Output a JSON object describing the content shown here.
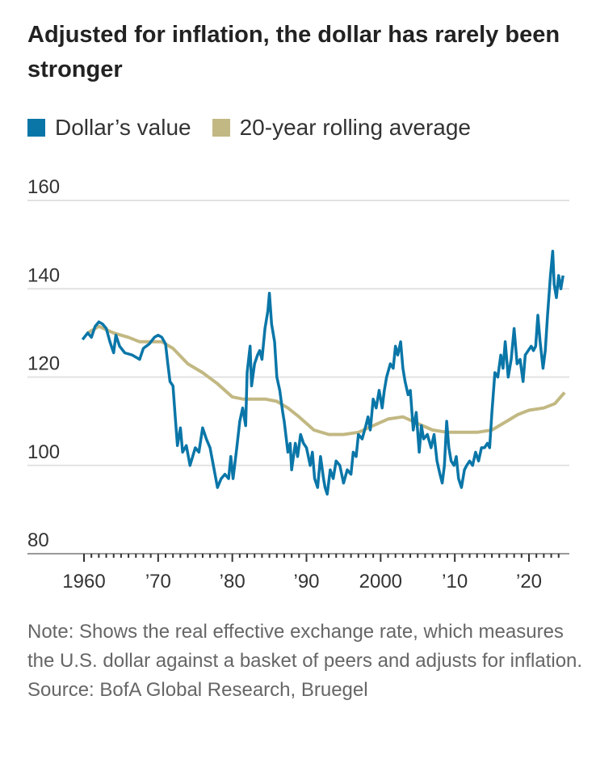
{
  "chart_data": {
    "type": "line",
    "title": "Adjusted for inflation, the dollar has rarely been stronger",
    "xlabel": "",
    "ylabel": "",
    "ylim": [
      80,
      160
    ],
    "xlim": [
      1958,
      2025.5
    ],
    "yticks": [
      160,
      140,
      120,
      100,
      80
    ],
    "xticks": [
      {
        "v": 1960,
        "l": "1960"
      },
      {
        "v": 1970,
        "l": "’70"
      },
      {
        "v": 1980,
        "l": "’80"
      },
      {
        "v": 1990,
        "l": "’90"
      },
      {
        "v": 2000,
        "l": "2000"
      },
      {
        "v": 2010,
        "l": "’10"
      },
      {
        "v": 2020,
        "l": "’20"
      }
    ],
    "grid": true,
    "legend_placement": "top",
    "series": [
      {
        "name": "Dollar’s value",
        "color": "#0a76a8",
        "x": [
          1959.8,
          1960.5,
          1961,
          1961.5,
          1962,
          1962.5,
          1963,
          1963.5,
          1964,
          1964.3,
          1964.8,
          1965.5,
          1966.5,
          1967,
          1967.5,
          1968,
          1968.8,
          1969.5,
          1970,
          1970.5,
          1971,
          1971.3,
          1971.6,
          1972,
          1972.3,
          1972.6,
          1973,
          1973.3,
          1973.8,
          1974.3,
          1975,
          1975.5,
          1976,
          1976.5,
          1977,
          1977.5,
          1978,
          1978.5,
          1979,
          1979.5,
          1979.8,
          1980.1,
          1980.6,
          1981,
          1981.4,
          1981.8,
          1982,
          1982.4,
          1982.6,
          1983,
          1983.4,
          1983.7,
          1984,
          1984.4,
          1984.8,
          1985,
          1985.3,
          1985.7,
          1986,
          1986.4,
          1986.8,
          1987,
          1987.5,
          1987.8,
          1988,
          1988.5,
          1988.8,
          1989.2,
          1989.6,
          1990,
          1990.5,
          1990.8,
          1991.1,
          1991.5,
          1991.9,
          1992.3,
          1992.5,
          1992.8,
          1993.2,
          1993.6,
          1994,
          1994.5,
          1995,
          1995.5,
          1996,
          1996.3,
          1996.7,
          1997,
          1997.5,
          1998,
          1998.3,
          1998.6,
          1999,
          1999.4,
          1999.8,
          2000.2,
          2000.5,
          2000.8,
          2001.3,
          2001.7,
          2002,
          2002.3,
          2002.7,
          2003,
          2003.3,
          2003.7,
          2004,
          2004.4,
          2004.8,
          2005.2,
          2005.5,
          2005.8,
          2006.3,
          2006.8,
          2007.2,
          2007.6,
          2008,
          2008.3,
          2008.6,
          2008.9,
          2009.2,
          2009.5,
          2009.9,
          2010.2,
          2010.5,
          2010.9,
          2011.3,
          2011.6,
          2012,
          2012.4,
          2012.8,
          2013.2,
          2013.6,
          2014,
          2014.4,
          2014.7,
          2015,
          2015.4,
          2015.8,
          2016.2,
          2016.5,
          2016.8,
          2017.2,
          2017.6,
          2018,
          2018.4,
          2018.8,
          2019.2,
          2019.5,
          2019.9,
          2020.3,
          2020.6,
          2020.9,
          2021.2,
          2021.5,
          2021.9,
          2022.2,
          2022.5,
          2022.9,
          2023.2,
          2023.4,
          2023.7,
          2024,
          2024.3,
          2024.6
        ],
        "values": [
          128.5,
          130,
          129,
          131.5,
          132.5,
          132,
          131,
          128,
          125.5,
          129.5,
          127,
          125.5,
          125,
          124.5,
          124,
          126.5,
          127.5,
          129,
          129.5,
          129,
          127.5,
          123,
          119,
          118,
          111,
          104.5,
          108.5,
          103,
          104.5,
          100,
          104,
          103,
          108.5,
          106,
          104,
          99.5,
          95,
          97,
          98,
          97,
          102,
          97,
          104,
          110,
          113,
          109,
          121,
          127,
          118,
          123,
          125,
          126,
          124,
          131,
          135,
          139,
          132,
          128,
          120,
          117,
          112,
          110,
          103,
          105,
          99,
          105,
          102,
          107,
          105,
          104,
          100,
          103,
          97,
          95,
          102,
          97,
          95,
          93.5,
          99,
          97,
          101,
          100,
          96,
          99,
          98,
          103,
          102,
          107,
          106,
          109,
          111,
          108,
          115,
          113,
          117,
          113,
          117,
          120,
          123,
          122,
          127,
          125,
          128,
          122,
          119,
          116,
          117,
          108,
          112,
          103,
          109,
          106,
          107,
          104,
          107,
          101,
          98,
          96,
          100,
          110,
          104,
          101,
          100,
          102,
          97,
          95,
          99,
          100,
          101,
          100,
          103,
          101,
          104,
          104,
          105,
          104,
          112,
          121,
          120,
          125,
          122,
          128,
          120,
          124,
          131,
          123,
          124,
          119,
          125,
          126,
          127,
          126,
          127,
          134,
          128,
          122,
          126,
          134,
          143,
          148.5,
          141,
          138,
          143,
          140,
          143
        ]
      },
      {
        "name": "20-year rolling average",
        "color": "#c2b883",
        "x": [
          1960.5,
          1962,
          1964,
          1966,
          1967.5,
          1969,
          1970.5,
          1972,
          1974,
          1976,
          1978,
          1980,
          1981.5,
          1983,
          1984.5,
          1986,
          1987.5,
          1989,
          1991,
          1993,
          1995,
          1997,
          1999,
          2001,
          2003,
          2005,
          2007,
          2009,
          2011,
          2013,
          2015,
          2017,
          2018.5,
          2020,
          2022,
          2023.5,
          2024.8
        ],
        "values": [
          130,
          131.5,
          130,
          129,
          128,
          128,
          128,
          126.5,
          123,
          121,
          118.5,
          115.5,
          115,
          115,
          115,
          114.5,
          113,
          111,
          108,
          107,
          107,
          107.5,
          109,
          110.5,
          111,
          109.5,
          108,
          107.5,
          107.5,
          107.5,
          108,
          110,
          111.5,
          112.5,
          113,
          114,
          116.5
        ]
      }
    ]
  },
  "notes": {
    "note": "Note: Shows the real effective exchange rate, which measures the U.S. dollar against a basket of peers and adjusts for inflation.",
    "source": "Source: BofA Global Research, Bruegel"
  }
}
